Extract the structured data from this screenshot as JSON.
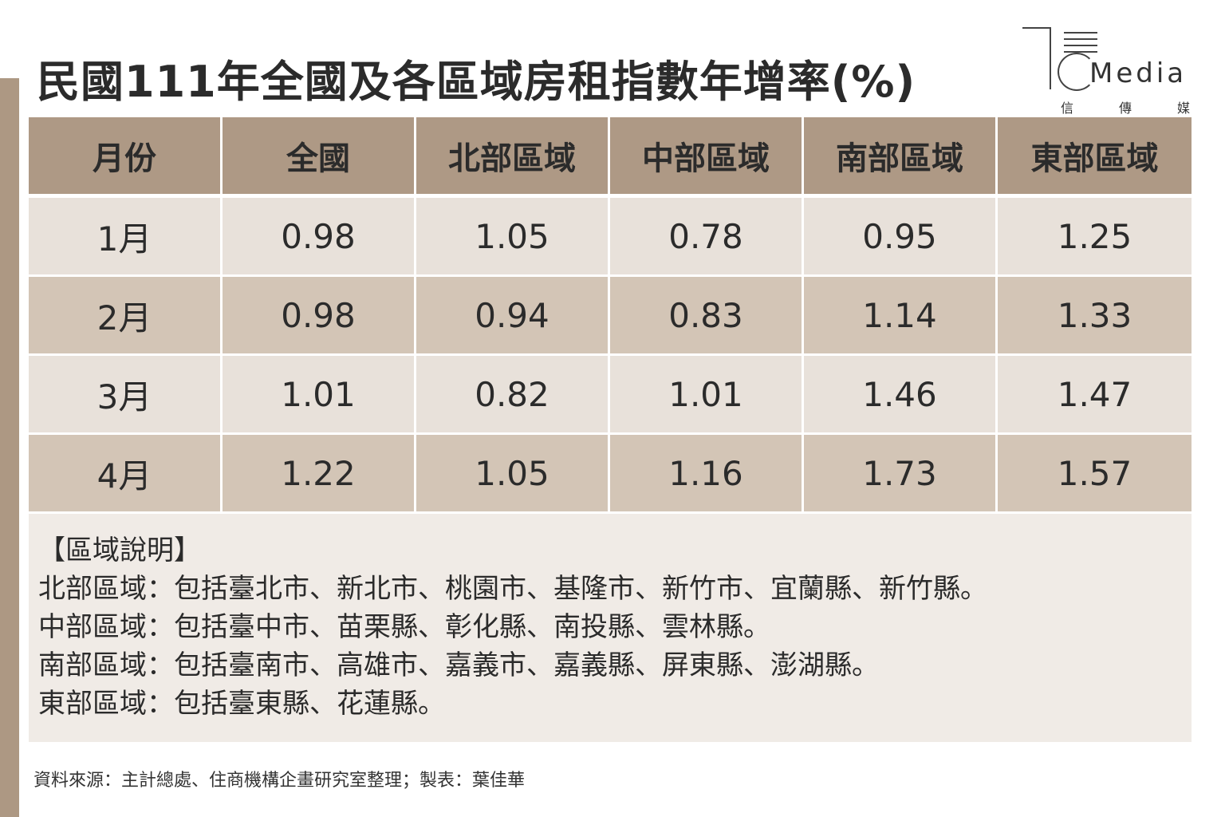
{
  "title": "民國111年全國及各區域房租指數年增率(%)",
  "logo": {
    "word": "Media",
    "sub": [
      "信",
      "傳",
      "媒"
    ]
  },
  "colors": {
    "header_bg": "#ae9985",
    "row_light": "#e8e1da",
    "row_dark": "#d3c5b6",
    "notes_bg": "#f0ebe6",
    "accent_bar": "#ad9883"
  },
  "chart_data": {
    "type": "table",
    "columns": [
      "月份",
      "全國",
      "北部區域",
      "中部區域",
      "南部區域",
      "東部區域"
    ],
    "rows": [
      [
        "1月",
        "0.98",
        "1.05",
        "0.78",
        "0.95",
        "1.25"
      ],
      [
        "2月",
        "0.98",
        "0.94",
        "0.83",
        "1.14",
        "1.33"
      ],
      [
        "3月",
        "1.01",
        "0.82",
        "1.01",
        "1.46",
        "1.47"
      ],
      [
        "4月",
        "1.22",
        "1.05",
        "1.16",
        "1.73",
        "1.57"
      ]
    ]
  },
  "notes": {
    "title": "【區域說明】",
    "lines": [
      "北部區域：包括臺北市、新北市、桃園市、基隆市、新竹市、宜蘭縣、新竹縣。",
      "中部區域：包括臺中市、苗栗縣、彰化縣、南投縣、雲林縣。",
      "南部區域：包括臺南市、高雄市、嘉義市、嘉義縣、屏東縣、澎湖縣。",
      "東部區域：包括臺東縣、花蓮縣。"
    ]
  },
  "source": "資料來源：主計總處、住商機構企畫研究室整理；製表：葉佳華"
}
